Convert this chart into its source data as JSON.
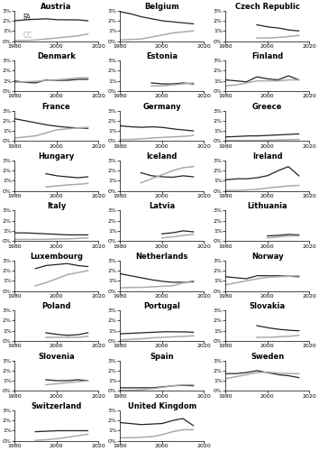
{
  "countries": [
    "Austria",
    "Belgium",
    "Czech Republic",
    "Denmark",
    "Estonia",
    "Finland",
    "France",
    "Germany",
    "Greece",
    "Hungary",
    "Iceland",
    "Ireland",
    "Italy",
    "Latvia",
    "Lithuania",
    "Luxembourg",
    "Netherlands",
    "Norway",
    "Poland",
    "Portugal",
    "Slovakia",
    "Slovenia",
    "Spain",
    "Sweden",
    "Switzerland",
    "United Kingdom"
  ],
  "years": [
    1980,
    1985,
    1990,
    1995,
    2000,
    2005,
    2010,
    2015
  ],
  "fa_data": {
    "Austria": [
      2.0,
      2.1,
      2.15,
      2.2,
      2.1,
      2.1,
      2.1,
      2.0
    ],
    "Belgium": [
      2.9,
      2.7,
      2.4,
      2.2,
      2.0,
      1.9,
      1.8,
      1.7
    ],
    "Czech Republic": [
      null,
      null,
      null,
      1.6,
      1.4,
      1.3,
      1.1,
      1.0
    ],
    "Denmark": [
      1.0,
      0.85,
      0.8,
      1.1,
      1.05,
      1.05,
      1.15,
      1.15
    ],
    "Estonia": [
      null,
      null,
      null,
      0.8,
      0.7,
      0.7,
      0.8,
      0.7
    ],
    "Finland": [
      1.1,
      1.0,
      0.9,
      1.4,
      1.2,
      1.1,
      1.5,
      1.1
    ],
    "France": [
      2.2,
      2.0,
      1.8,
      1.6,
      1.45,
      1.35,
      1.3,
      1.25
    ],
    "Germany": [
      1.5,
      1.4,
      1.35,
      1.4,
      1.35,
      1.2,
      1.1,
      1.0
    ],
    "Greece": [
      0.4,
      0.45,
      0.5,
      0.5,
      0.55,
      0.6,
      0.65,
      0.7
    ],
    "Hungary": [
      null,
      null,
      null,
      1.7,
      1.5,
      1.4,
      1.3,
      1.4
    ],
    "Iceland": [
      null,
      null,
      1.8,
      1.5,
      1.4,
      1.35,
      1.5,
      1.4
    ],
    "Ireland": [
      1.1,
      1.2,
      1.2,
      1.3,
      1.5,
      2.0,
      2.4,
      1.5
    ],
    "Italy": [
      0.8,
      0.8,
      0.75,
      0.7,
      0.65,
      0.6,
      0.6,
      0.6
    ],
    "Latvia": [
      null,
      null,
      null,
      null,
      0.7,
      0.8,
      1.0,
      0.9
    ],
    "Lithuania": [
      null,
      null,
      null,
      null,
      0.5,
      0.55,
      0.65,
      0.6
    ],
    "Luxembourg": [
      null,
      null,
      2.2,
      2.5,
      2.6,
      2.7,
      2.5,
      2.4
    ],
    "Netherlands": [
      1.7,
      1.5,
      1.3,
      1.1,
      0.95,
      0.85,
      0.85,
      0.9
    ],
    "Norway": [
      1.4,
      1.3,
      1.2,
      1.5,
      1.5,
      1.5,
      1.45,
      1.4
    ],
    "Poland": [
      null,
      null,
      null,
      0.8,
      0.65,
      0.55,
      0.6,
      0.8
    ],
    "Portugal": [
      0.7,
      0.75,
      0.8,
      0.85,
      0.9,
      0.9,
      0.9,
      0.85
    ],
    "Slovakia": [
      null,
      null,
      null,
      1.5,
      1.3,
      1.15,
      1.05,
      1.0
    ],
    "Slovenia": [
      null,
      null,
      null,
      1.1,
      1.0,
      1.0,
      1.1,
      1.0
    ],
    "Spain": [
      0.3,
      0.3,
      0.3,
      0.3,
      0.4,
      0.5,
      0.55,
      0.5
    ],
    "Sweden": [
      1.7,
      1.7,
      1.8,
      2.0,
      1.8,
      1.6,
      1.5,
      1.3
    ],
    "Switzerland": [
      null,
      null,
      0.9,
      0.95,
      1.0,
      1.0,
      1.0,
      1.0
    ],
    "United Kingdom": [
      1.8,
      1.7,
      1.6,
      1.65,
      1.7,
      2.0,
      2.2,
      1.5
    ]
  },
  "cc_data": {
    "Austria": [
      0.05,
      0.05,
      0.1,
      0.2,
      0.3,
      0.4,
      0.5,
      0.7
    ],
    "Belgium": [
      0.1,
      0.15,
      0.2,
      0.4,
      0.6,
      0.8,
      0.9,
      1.0
    ],
    "Czech Republic": [
      null,
      null,
      null,
      0.3,
      0.3,
      0.35,
      0.45,
      0.55
    ],
    "Denmark": [
      0.85,
      0.9,
      0.95,
      1.05,
      1.1,
      1.2,
      1.3,
      1.3
    ],
    "Estonia": [
      null,
      null,
      null,
      0.5,
      0.5,
      0.6,
      0.7,
      0.8
    ],
    "Finland": [
      0.5,
      0.6,
      0.8,
      1.0,
      1.0,
      1.0,
      1.1,
      1.1
    ],
    "France": [
      0.3,
      0.4,
      0.5,
      0.8,
      1.1,
      1.2,
      1.3,
      1.35
    ],
    "Germany": [
      0.15,
      0.15,
      0.2,
      0.3,
      0.35,
      0.4,
      0.45,
      0.55
    ],
    "Greece": [
      0.05,
      0.05,
      0.05,
      0.05,
      0.08,
      0.1,
      0.15,
      0.15
    ],
    "Hungary": [
      null,
      null,
      null,
      0.4,
      0.5,
      0.6,
      0.65,
      0.75
    ],
    "Iceland": [
      null,
      null,
      0.8,
      1.2,
      1.6,
      2.0,
      2.3,
      2.4
    ],
    "Ireland": [
      0.05,
      0.05,
      0.1,
      0.15,
      0.3,
      0.4,
      0.5,
      0.55
    ],
    "Italy": [
      0.15,
      0.15,
      0.15,
      0.15,
      0.2,
      0.2,
      0.25,
      0.3
    ],
    "Latvia": [
      null,
      null,
      null,
      null,
      0.3,
      0.4,
      0.55,
      0.65
    ],
    "Lithuania": [
      null,
      null,
      null,
      null,
      0.3,
      0.4,
      0.5,
      0.5
    ],
    "Luxembourg": [
      null,
      null,
      0.5,
      0.8,
      1.2,
      1.6,
      1.8,
      2.0
    ],
    "Netherlands": [
      0.3,
      0.35,
      0.35,
      0.4,
      0.45,
      0.5,
      0.8,
      1.0
    ],
    "Norway": [
      0.6,
      0.8,
      1.0,
      1.2,
      1.35,
      1.4,
      1.45,
      1.5
    ],
    "Poland": [
      null,
      null,
      null,
      0.35,
      0.35,
      0.35,
      0.35,
      0.45
    ],
    "Portugal": [
      0.1,
      0.15,
      0.2,
      0.3,
      0.35,
      0.4,
      0.45,
      0.5
    ],
    "Slovakia": [
      null,
      null,
      null,
      0.35,
      0.35,
      0.4,
      0.45,
      0.55
    ],
    "Slovenia": [
      null,
      null,
      null,
      0.6,
      0.7,
      0.8,
      0.9,
      1.0
    ],
    "Spain": [
      0.05,
      0.05,
      0.1,
      0.2,
      0.35,
      0.5,
      0.6,
      0.6
    ],
    "Sweden": [
      1.2,
      1.4,
      1.6,
      1.8,
      1.85,
      1.75,
      1.7,
      1.7
    ],
    "Switzerland": [
      null,
      null,
      0.05,
      0.1,
      0.2,
      0.35,
      0.5,
      0.65
    ],
    "United Kingdom": [
      0.3,
      0.3,
      0.35,
      0.4,
      0.6,
      0.9,
      1.1,
      1.1
    ]
  },
  "ncols": 3,
  "xmin": 1980,
  "xmax": 2020,
  "ymin": 0.0,
  "ymax": 3.0,
  "yticks": [
    0,
    1,
    2,
    3
  ],
  "yticklabels": [
    "0%",
    "1%",
    "2%",
    "3%"
  ],
  "xticks": [
    1980,
    2000,
    2020
  ],
  "fa_color": "#222222",
  "cc_color": "#aaaaaa",
  "fa_linewidth": 0.9,
  "cc_linewidth": 1.1,
  "title_fontsize": 6,
  "tick_fontsize": 4.5,
  "legend_fontsize": 5.5
}
